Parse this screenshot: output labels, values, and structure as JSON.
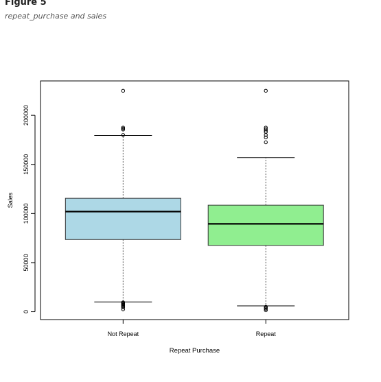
{
  "figure": {
    "title": "Figure 5",
    "caption": "repeat_purchase and sales"
  },
  "chart_data": {
    "type": "boxplot",
    "xlabel": "Repeat Purchase",
    "ylabel": "Sales",
    "ylim": [
      -8000,
      235000
    ],
    "yticks": [
      "0",
      "50000",
      "100000",
      "150000",
      "200000"
    ],
    "grid": false,
    "categories": [
      "Not Repeat",
      "Repeat"
    ],
    "boxes": [
      {
        "category": "Not Repeat",
        "color": "#add8e6",
        "whisker_low": 10000,
        "q1": 73500,
        "median": 102000,
        "q3": 115500,
        "whisker_high": 179500,
        "outliers": [
          225000,
          187500,
          186500,
          185500,
          180000,
          9500,
          8800,
          8000,
          7200,
          6500,
          5500,
          4500,
          2500
        ]
      },
      {
        "category": "Repeat",
        "color": "#90ee90",
        "whisker_low": 6000,
        "q1": 67500,
        "median": 89500,
        "q3": 108500,
        "whisker_high": 157000,
        "outliers": [
          225000,
          187500,
          186000,
          184500,
          183000,
          180000,
          177500,
          172500,
          5000,
          4000,
          3000,
          1500
        ]
      }
    ]
  }
}
